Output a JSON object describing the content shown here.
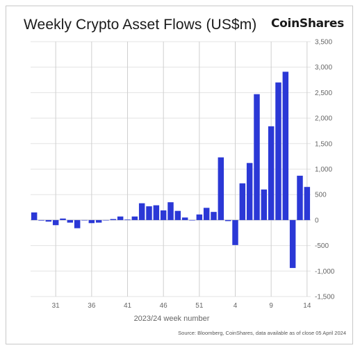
{
  "header": {
    "title": "Weekly Crypto Asset Flows (US$m)",
    "logo": "CoinShares"
  },
  "footer": {
    "source": "Source: Bloomberg, CoinShares, data available as of close 05 April 2024"
  },
  "chart_data": {
    "type": "bar",
    "title": "Weekly Crypto Asset Flows (US$m)",
    "xlabel": "2023/24 week number",
    "ylabel": "",
    "ylim": [
      -1500,
      3500
    ],
    "yticks": [
      -1500,
      -1000,
      -500,
      0,
      500,
      1000,
      1500,
      2000,
      2500,
      3000,
      3500
    ],
    "ytick_labels": [
      "-1,500",
      "-1,000",
      "-500",
      "0",
      "500",
      "1,000",
      "1,500",
      "2,000",
      "2,500",
      "3,000",
      "3,500"
    ],
    "axis_position": "right",
    "grid": "vertical lines at labeled weeks",
    "bar_color": "#2b38d6",
    "categories": [
      "28",
      "29",
      "30",
      "31",
      "32",
      "33",
      "34",
      "35",
      "36",
      "37",
      "38",
      "39",
      "40",
      "41",
      "42",
      "43",
      "44",
      "45",
      "46",
      "47",
      "48",
      "49",
      "50",
      "51",
      "52",
      "1",
      "2",
      "3",
      "4",
      "5",
      "6",
      "7",
      "8",
      "9",
      "10",
      "11",
      "12",
      "13",
      "14"
    ],
    "xtick_labels": [
      {
        "category": "31",
        "label": "31"
      },
      {
        "category": "36",
        "label": "36"
      },
      {
        "category": "41",
        "label": "41"
      },
      {
        "category": "46",
        "label": "46"
      },
      {
        "category": "51",
        "label": "51"
      },
      {
        "category": "4",
        "label": "4"
      },
      {
        "category": "9",
        "label": "9"
      },
      {
        "category": "14",
        "label": "14"
      }
    ],
    "series": [
      {
        "values": [
          150,
          -10,
          -30,
          -100,
          30,
          -50,
          -160,
          0,
          -60,
          -50,
          0,
          20,
          70,
          10,
          70,
          330,
          270,
          290,
          190,
          350,
          180,
          50,
          0,
          110,
          240,
          160,
          1230,
          -20,
          -490,
          720,
          1120,
          2470,
          600,
          1840,
          2700,
          2910,
          -940,
          870,
          650
        ]
      }
    ]
  }
}
